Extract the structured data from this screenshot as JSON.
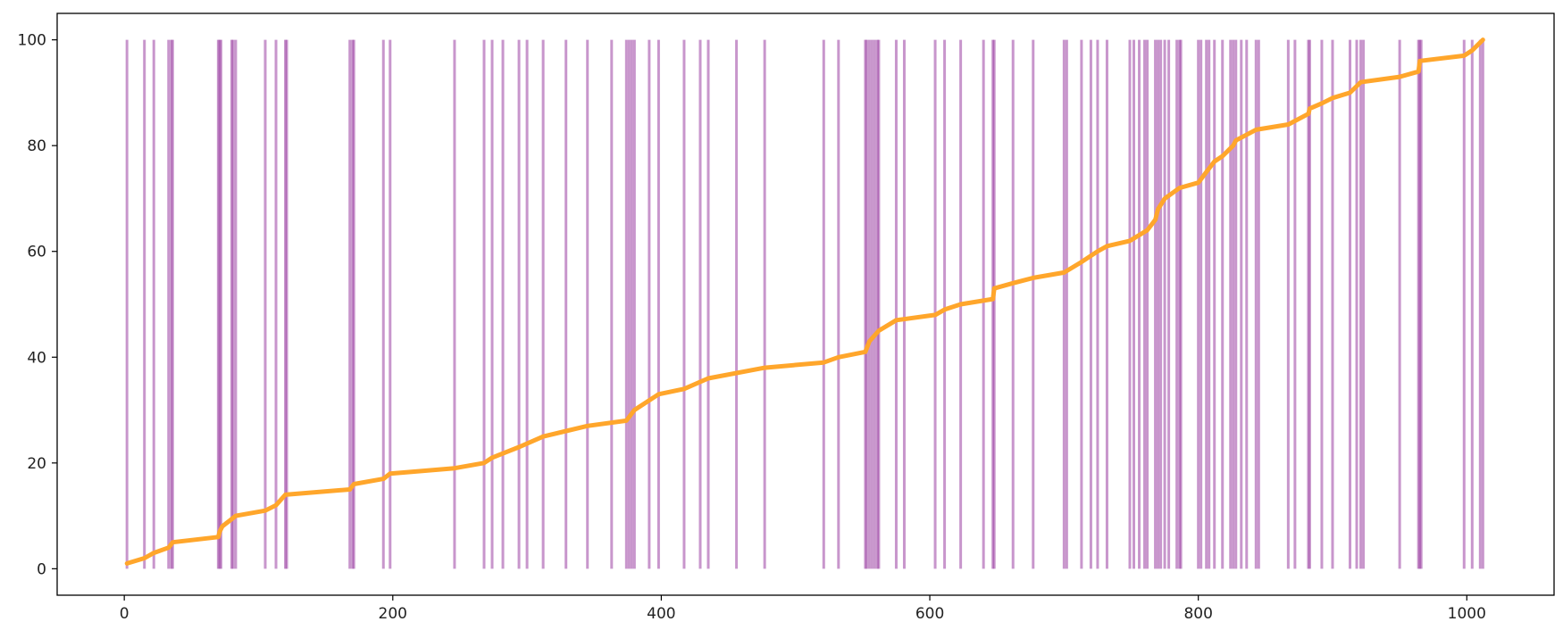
{
  "chart_data": {
    "type": "line",
    "title": "",
    "xlabel": "",
    "ylabel": "",
    "xlim": [
      -50,
      1065
    ],
    "ylim": [
      -5,
      105
    ],
    "grid": false,
    "x_ticks": [
      0,
      200,
      400,
      600,
      800,
      1000
    ],
    "y_ticks": [
      0,
      20,
      40,
      60,
      80,
      100
    ],
    "x_tick_labels": [
      "0",
      "200",
      "400",
      "600",
      "800",
      "1000"
    ],
    "y_tick_labels": [
      "0",
      "20",
      "40",
      "60",
      "80",
      100
    ],
    "colors": {
      "line": "#ffa62b",
      "events": "#9b3fa3"
    },
    "event_lines": {
      "y_range": [
        0,
        100
      ],
      "alpha": 0.55,
      "x": [
        2,
        15,
        22,
        33,
        35,
        36,
        70,
        71,
        72,
        80,
        81,
        83,
        105,
        113,
        120,
        121,
        168,
        170,
        171,
        193,
        198,
        246,
        268,
        274,
        282,
        294,
        300,
        312,
        329,
        345,
        363,
        374,
        376,
        378,
        380,
        391,
        398,
        417,
        429,
        435,
        456,
        477,
        521,
        532,
        552,
        553,
        555,
        557,
        559,
        561,
        562,
        575,
        581,
        604,
        611,
        623,
        640,
        647,
        648,
        662,
        677,
        700,
        702,
        713,
        720,
        725,
        732,
        749,
        752,
        756,
        760,
        762,
        768,
        770,
        772,
        775,
        778,
        784,
        786,
        787,
        800,
        802,
        806,
        808,
        812,
        818,
        824,
        826,
        828,
        832,
        836,
        843,
        845,
        867,
        872,
        882,
        883,
        892,
        900,
        913,
        918,
        921,
        923,
        950,
        964,
        965,
        966,
        998,
        1004,
        1010,
        1012
      ]
    },
    "series": [
      {
        "x": [
          2,
          15,
          22,
          33,
          36,
          70,
          71,
          73,
          83,
          105,
          113,
          120,
          168,
          171,
          193,
          198,
          246,
          268,
          274,
          294,
          312,
          345,
          374,
          380,
          398,
          417,
          435,
          477,
          521,
          532,
          552,
          555,
          562,
          575,
          604,
          611,
          623,
          647,
          648,
          662,
          677,
          700,
          713,
          725,
          732,
          749,
          762,
          768,
          770,
          775,
          786,
          800,
          806,
          812,
          818,
          826,
          828,
          843,
          867,
          882,
          883,
          892,
          900,
          913,
          921,
          950,
          964,
          965,
          998,
          1004,
          1012
        ],
        "y": [
          1,
          2,
          3,
          4,
          5,
          6,
          7,
          8,
          10,
          11,
          12,
          14,
          15,
          16,
          17,
          18,
          19,
          20,
          21,
          23,
          25,
          27,
          28,
          30,
          33,
          34,
          36,
          38,
          39,
          40,
          41,
          43,
          45,
          47,
          48,
          49,
          50,
          51,
          53,
          54,
          55,
          56,
          58,
          60,
          61,
          62,
          64,
          66,
          68,
          70,
          72,
          73,
          75,
          77,
          78,
          80,
          81,
          83,
          84,
          86,
          87,
          88,
          89,
          90,
          92,
          93,
          94,
          96,
          97,
          98,
          100
        ]
      }
    ]
  }
}
